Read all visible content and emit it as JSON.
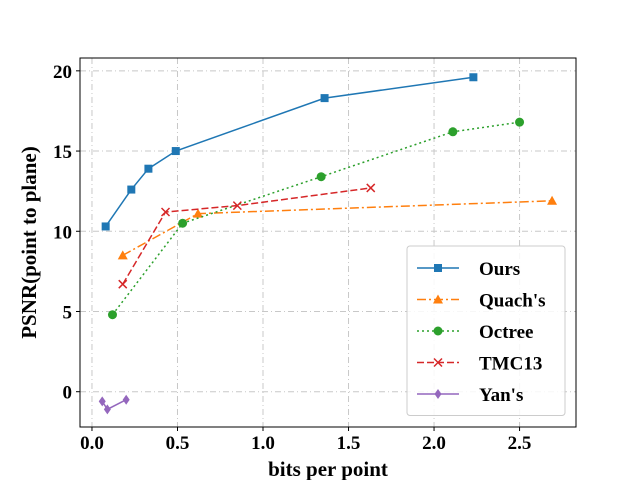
{
  "chart_data": {
    "type": "line",
    "title": "",
    "xlabel": "bits per point",
    "ylabel": "PSNR(point to plane)",
    "xlim": [
      -0.07,
      2.83
    ],
    "ylim": [
      -2.2,
      20.8
    ],
    "xticks": [
      0.0,
      0.5,
      1.0,
      1.5,
      2.0,
      2.5
    ],
    "xtick_labels": [
      "0.0",
      "0.5",
      "1.0",
      "1.5",
      "2.0",
      "2.5"
    ],
    "yticks": [
      0,
      5,
      10,
      15,
      20
    ],
    "ytick_labels": [
      "0",
      "5",
      "10",
      "15",
      "20"
    ],
    "grid": true,
    "legend_position": "lower-right",
    "series": [
      {
        "name": "Ours",
        "color": "#1f77b4",
        "marker": "square",
        "linestyle": "solid",
        "x": [
          0.08,
          0.23,
          0.33,
          0.49,
          1.36,
          2.23
        ],
        "y": [
          10.3,
          12.6,
          13.9,
          15.0,
          18.3,
          19.6
        ]
      },
      {
        "name": "Quach's",
        "color": "#ff7f0e",
        "marker": "triangle",
        "linestyle": "dashdot",
        "x": [
          0.18,
          0.62,
          2.69
        ],
        "y": [
          8.5,
          11.1,
          11.9
        ]
      },
      {
        "name": "Octree",
        "color": "#2ca02c",
        "marker": "circle",
        "linestyle": "dotted",
        "x": [
          0.12,
          0.53,
          1.34,
          2.11,
          2.5
        ],
        "y": [
          4.8,
          10.5,
          13.4,
          16.2,
          16.8
        ]
      },
      {
        "name": "TMC13",
        "color": "#d62728",
        "marker": "x",
        "linestyle": "dashed",
        "x": [
          0.18,
          0.43,
          0.85,
          1.63
        ],
        "y": [
          6.7,
          11.2,
          11.6,
          12.7
        ]
      },
      {
        "name": "Yan's",
        "color": "#9467bd",
        "marker": "diamond",
        "linestyle": "solid",
        "x": [
          0.06,
          0.09,
          0.2
        ],
        "y": [
          -0.6,
          -1.1,
          -0.5
        ]
      }
    ]
  }
}
